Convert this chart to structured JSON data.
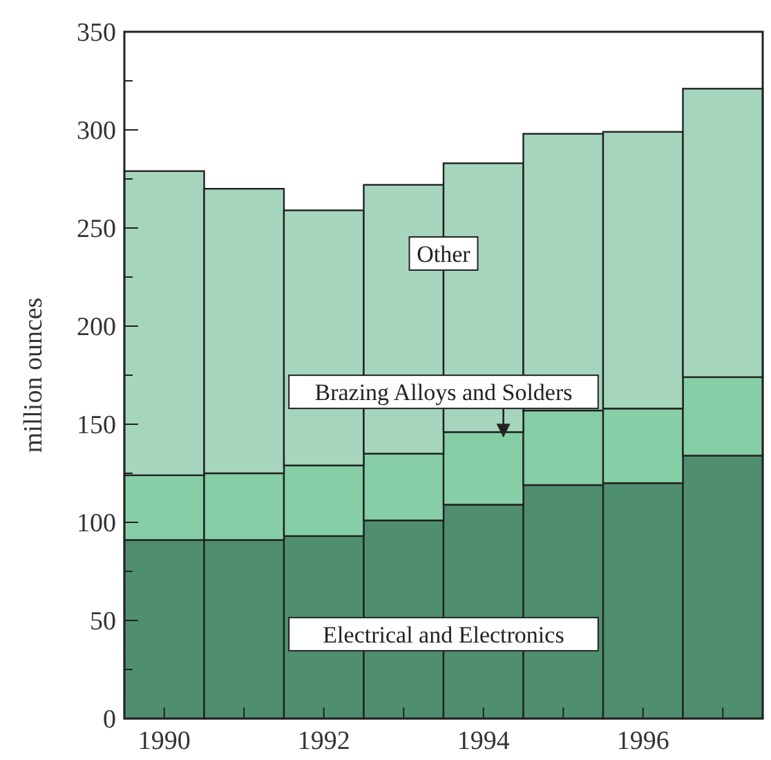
{
  "chart_data": {
    "type": "bar",
    "stacked": true,
    "ylabel": "million ounces",
    "categories": [
      "1990",
      null,
      "1992",
      null,
      "1994",
      null,
      "1996",
      null
    ],
    "ylim": [
      0,
      350
    ],
    "yticks": [
      0,
      {
        "value": 25,
        "label": null
      },
      50,
      {
        "value": 75,
        "label": null
      },
      100,
      {
        "value": 125,
        "label": null
      },
      150,
      {
        "value": 175,
        "label": null
      },
      200,
      {
        "value": 225,
        "label": null
      },
      250,
      {
        "value": 275,
        "label": null
      },
      300,
      {
        "value": 325,
        "label": null
      },
      350
    ],
    "series": [
      {
        "name": "Electrical and Electronics",
        "color": "#4f8f6f",
        "values": [
          91,
          91,
          93,
          101,
          109,
          119,
          120,
          134
        ]
      },
      {
        "name": "Brazing Alloys and Solders",
        "color": "#86cfa6",
        "values": [
          33,
          34,
          36,
          34,
          37,
          38,
          38,
          40
        ]
      },
      {
        "name": "Other",
        "color": "#a5d6bd",
        "values": [
          155,
          145,
          130,
          137,
          137,
          141,
          141,
          147
        ]
      }
    ]
  }
}
